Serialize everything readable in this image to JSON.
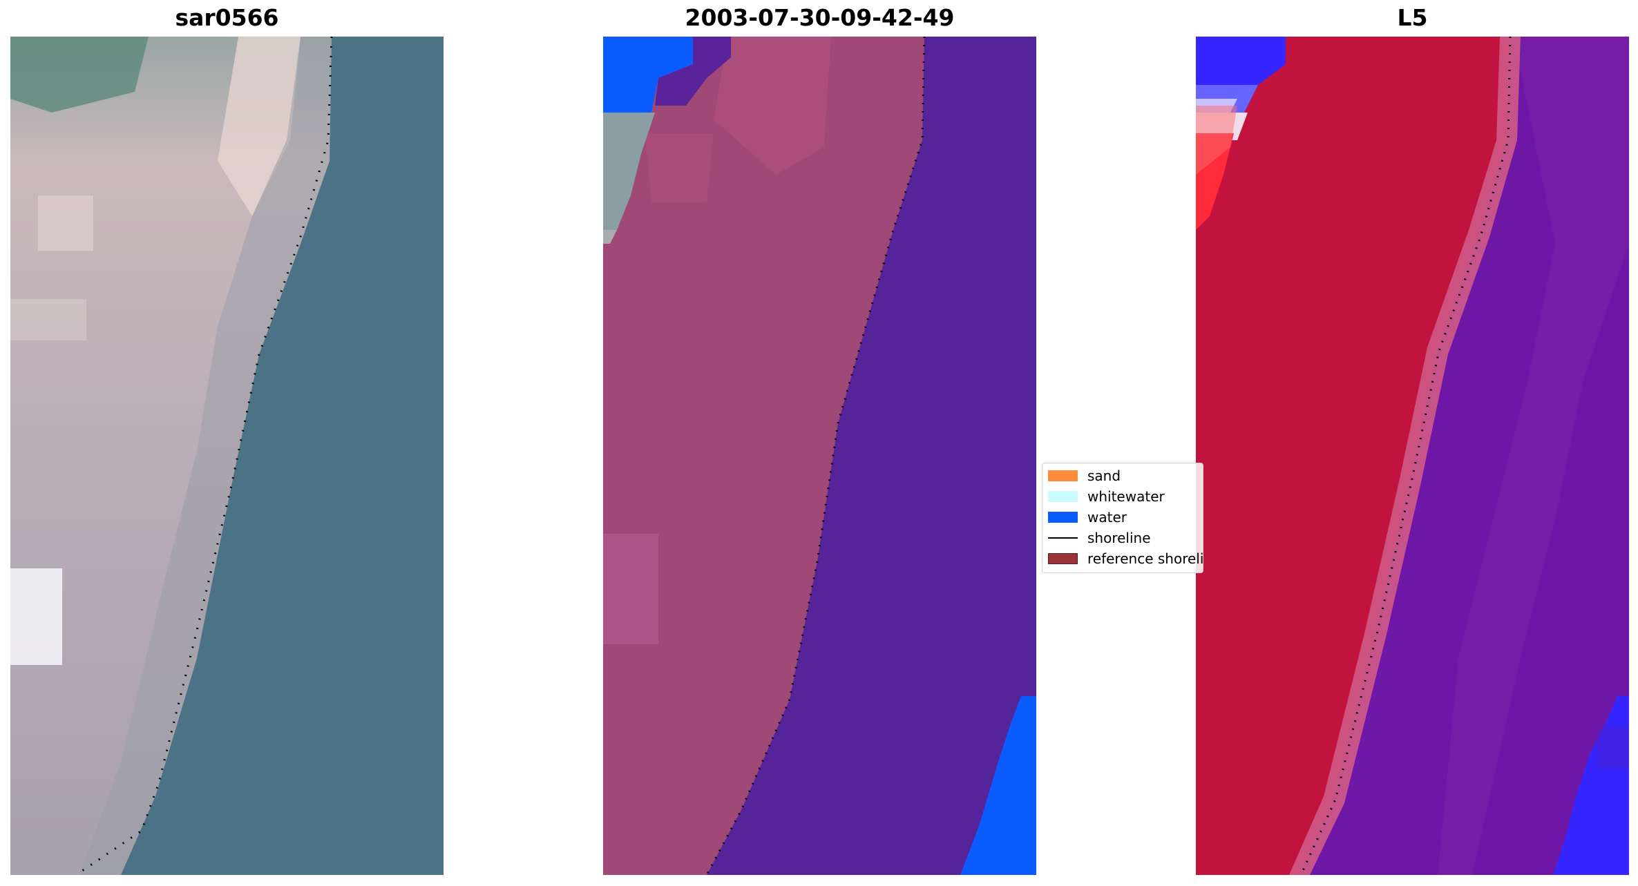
{
  "panels": [
    {
      "title": "sar0566"
    },
    {
      "title": "2003-07-30-09-42-49"
    },
    {
      "title": "L5"
    }
  ],
  "legend": {
    "items": [
      {
        "label": "sand",
        "color": "#ff8c3b"
      },
      {
        "label": "whitewater",
        "color": "#c9fbff"
      },
      {
        "label": "water",
        "color": "#0a5cff"
      },
      {
        "label": "shoreline",
        "color": "#000000"
      },
      {
        "label": "reference shoreline",
        "color": "#9b3236"
      }
    ]
  },
  "colors": {
    "rgb_land": "#c7b9bd",
    "rgb_water": "#4b7184",
    "class_land": "#a04876",
    "class_water": "#55239a",
    "class_water_pixels": "#0a5cff",
    "index_land": "#c2123e",
    "index_water": "#6e17a6",
    "index_blue": "#3525ff"
  }
}
